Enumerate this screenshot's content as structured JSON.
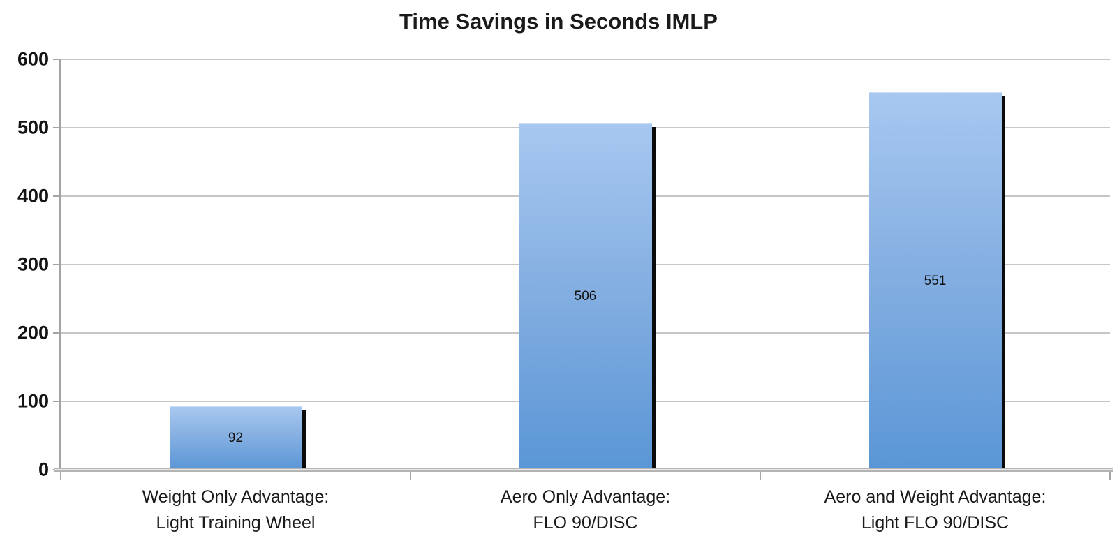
{
  "chart_data": {
    "type": "bar",
    "title": "Time Savings in Seconds IMLP",
    "categories": [
      {
        "line1": "Weight Only Advantage:",
        "line2": "Light Training Wheel"
      },
      {
        "line1": "Aero Only Advantage:",
        "line2": "FLO 90/DISC"
      },
      {
        "line1": "Aero and Weight Advantage:",
        "line2": "Light FLO 90/DISC"
      }
    ],
    "values": [
      92,
      506,
      551
    ],
    "value_labels": [
      "92",
      "506",
      "551"
    ],
    "xlabel": "",
    "ylabel": "",
    "ylim": [
      0,
      600
    ],
    "yticks": [
      600,
      500,
      400,
      300,
      200,
      100,
      0
    ],
    "grid": true,
    "legend": "none",
    "colors": {
      "bar_gradient_top": "#A7C8F0",
      "bar_gradient_bottom": "#5A96D6",
      "bar_shadow": "#0B0B0B",
      "gridline": "#C6C6C6",
      "axis_line": "#A3A3A3",
      "text": "#1A1A1A"
    }
  }
}
